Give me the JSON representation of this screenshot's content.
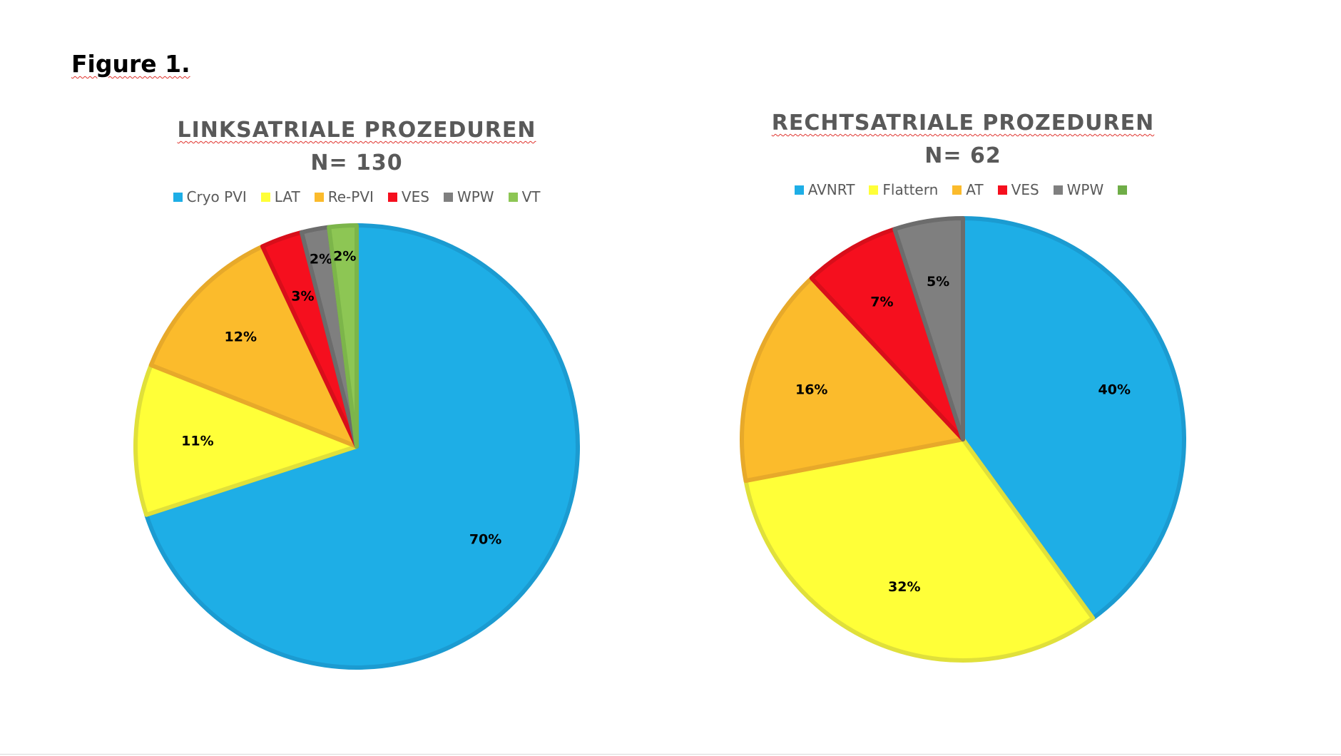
{
  "figure_label": "Figure 1.",
  "chart_data": [
    {
      "type": "pie",
      "title": "LINKSATRIALE PROZEDUREN",
      "subtitle": "N= 130",
      "legend_position": "top",
      "categories": [
        "Cryo PVI",
        "LAT",
        "Re-PVI",
        "VES",
        "WPW",
        "VT"
      ],
      "values": [
        70,
        11,
        12,
        3,
        2,
        2
      ],
      "labels": [
        "70%",
        "11%",
        "12%",
        "3%",
        "2%",
        "2%"
      ],
      "colors": [
        "#1eaee6",
        "#ffff38",
        "#fbbb2c",
        "#f50f1e",
        "#7f7f7f",
        "#8dc654"
      ],
      "border_colors": [
        "#1b9bd1",
        "#e0e03a",
        "#e7a92a",
        "#d80e1a",
        "#6c6c6c",
        "#7cb54a"
      ]
    },
    {
      "type": "pie",
      "title": "RECHTSATRIALE PROZEDUREN",
      "subtitle": "N= 62",
      "legend_position": "top",
      "categories": [
        "AVNRT",
        "Flattern",
        "AT",
        "VES",
        "WPW",
        ""
      ],
      "values": [
        40,
        32,
        16,
        7,
        5,
        0
      ],
      "labels": [
        "40%",
        "32%",
        "16%",
        "7%",
        "5%",
        ""
      ],
      "colors": [
        "#1eaee6",
        "#ffff38",
        "#fbbb2c",
        "#f50f1e",
        "#7f7f7f",
        "#6fad47"
      ],
      "border_colors": [
        "#1b9bd1",
        "#e0e03a",
        "#e7a92a",
        "#d80e1a",
        "#6c6c6c",
        "#5e9a3c"
      ]
    }
  ]
}
